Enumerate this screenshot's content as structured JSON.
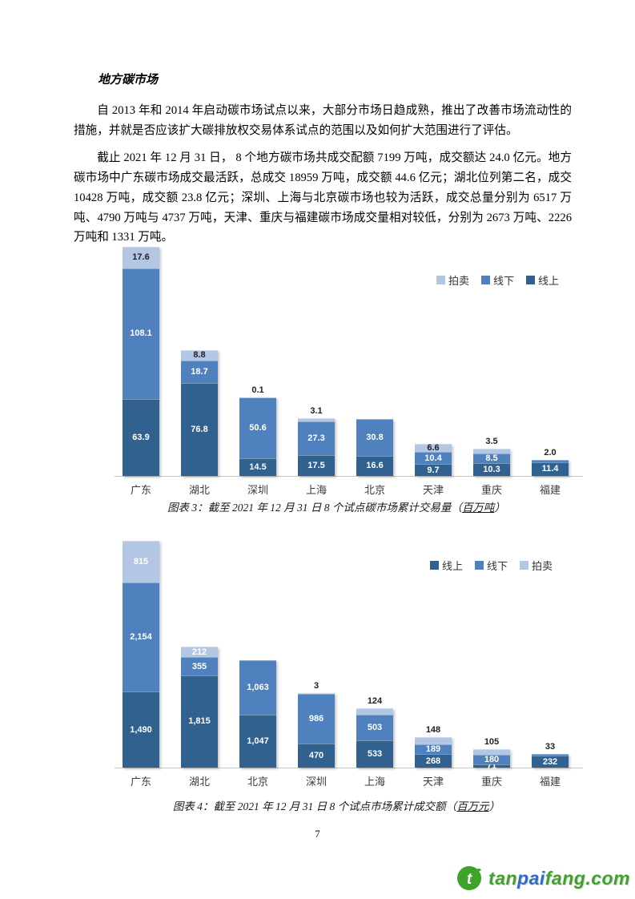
{
  "page": {
    "number": "7"
  },
  "heading": "地方碳市场",
  "paragraphs": [
    {
      "text": "自 2013 年和 2014 年启动碳市场试点以来，大部分市场日趋成熟，推出了改善市场流动性的措施，并就是否应该扩大碳排放权交易体系试点的范围以及如何扩大范围进行了评估。"
    },
    {
      "text": "截止 2021 年 12 月 31 日， 8 个地方碳市场共成交配额 7199 万吨，成交额达 24.0 亿元。地方碳市场中广东碳市场成交最活跃，总成交 18959 万吨，成交额 44.6 亿元；湖北位列第二名，成交 10428 万吨，成交额 23.8 亿元；深圳、上海与北京碳市场也较为活跃，成交总量分别为 6517 万吨、4790 万吨与 4737 万吨，天津、重庆与福建碳市场成交量相对较低，分别为 2673 万吨、2226 万吨和 1331 万吨。"
    }
  ],
  "chart_data": [
    {
      "type": "bar",
      "stacked": true,
      "title": "截至 2021 年 12 月 31 日 8 个试点碳市场累计交易量（百万吨）",
      "caption": {
        "prefix": "图表 3：截至 2021 年 12 月 31 日 8 个试点碳市场累计交易量（",
        "unit": "百万吨",
        "suffix": "）"
      },
      "ylim": [
        0,
        189.6
      ],
      "grid": false,
      "legend_position": "top-right",
      "series_colors": {
        "线上": "#31618F",
        "线下": "#4E81BD",
        "拍卖": "#B3C6E3"
      },
      "legend": {
        "items": [
          {
            "label": "拍卖",
            "series": "拍卖"
          },
          {
            "label": "线下",
            "series": "线下"
          },
          {
            "label": "线上",
            "series": "线上"
          }
        ]
      },
      "categories": [
        "广东",
        "湖北",
        "深圳",
        "上海",
        "北京",
        "天津",
        "重庆",
        "福建"
      ],
      "bars": [
        {
          "category": "广东",
          "segments": [
            {
              "series": "线上",
              "value": 63.9,
              "label": "63.9",
              "label_pos": "inside",
              "label_color": "#FFFFFF"
            },
            {
              "series": "线下",
              "value": 108.1,
              "label": "108.1",
              "label_pos": "inside",
              "label_color": "#FFFFFF"
            },
            {
              "series": "拍卖",
              "value": 17.6,
              "label": "17.6",
              "label_pos": "inside",
              "label_color": "#1F1F1F"
            }
          ]
        },
        {
          "category": "湖北",
          "segments": [
            {
              "series": "线上",
              "value": 76.8,
              "label": "76.8",
              "label_pos": "inside",
              "label_color": "#FFFFFF"
            },
            {
              "series": "线下",
              "value": 18.7,
              "label": "18.7",
              "label_pos": "inside",
              "label_color": "#FFFFFF"
            },
            {
              "series": "拍卖",
              "value": 8.8,
              "label": "8.8",
              "label_pos": "inside",
              "label_color": "#1F1F1F"
            }
          ]
        },
        {
          "category": "深圳",
          "segments": [
            {
              "series": "线上",
              "value": 14.5,
              "label": "14.5",
              "label_pos": "inside",
              "label_color": "#FFFFFF"
            },
            {
              "series": "线下",
              "value": 50.6,
              "label": "50.6",
              "label_pos": "inside",
              "label_color": "#FFFFFF"
            },
            {
              "series": "拍卖",
              "value": 0.1,
              "label": "0.1",
              "label_pos": "above"
            }
          ]
        },
        {
          "category": "上海",
          "segments": [
            {
              "series": "线上",
              "value": 17.5,
              "label": "17.5",
              "label_pos": "inside",
              "label_color": "#FFFFFF"
            },
            {
              "series": "线下",
              "value": 27.3,
              "label": "27.3",
              "label_pos": "inside",
              "label_color": "#FFFFFF"
            },
            {
              "series": "拍卖",
              "value": 3.1,
              "label": "3.1",
              "label_pos": "above"
            }
          ]
        },
        {
          "category": "北京",
          "segments": [
            {
              "series": "线上",
              "value": 16.6,
              "label": "16.6",
              "label_pos": "inside",
              "label_color": "#FFFFFF"
            },
            {
              "series": "线下",
              "value": 30.8,
              "label": "30.8",
              "label_pos": "inside",
              "label_color": "#FFFFFF"
            }
          ]
        },
        {
          "category": "天津",
          "segments": [
            {
              "series": "线上",
              "value": 9.7,
              "label": "9.7",
              "label_pos": "inside",
              "label_color": "#FFFFFF"
            },
            {
              "series": "线下",
              "value": 10.4,
              "label": "10.4",
              "label_pos": "inside",
              "label_color": "#FFFFFF"
            },
            {
              "series": "拍卖",
              "value": 6.6,
              "label": "6.6",
              "label_pos": "inside",
              "label_color": "#1F1F1F"
            }
          ]
        },
        {
          "category": "重庆",
          "segments": [
            {
              "series": "线上",
              "value": 10.3,
              "label": "10.3",
              "label_pos": "inside",
              "label_color": "#FFFFFF"
            },
            {
              "series": "线下",
              "value": 8.5,
              "label": "8.5",
              "label_pos": "inside",
              "label_color": "#FFFFFF"
            },
            {
              "series": "拍卖",
              "value": 3.5,
              "label": "3.5",
              "label_pos": "above"
            }
          ]
        },
        {
          "category": "福建",
          "segments": [
            {
              "series": "线上",
              "value": 11.4,
              "label": "11.4",
              "label_pos": "inside",
              "label_color": "#FFFFFF"
            },
            {
              "series": "线下",
              "value": 2.0,
              "label": "2.0",
              "label_pos": "above"
            }
          ]
        }
      ]
    },
    {
      "type": "bar",
      "stacked": true,
      "title": "截至 2021 年 12 月 31 日 8 个试点市场累计成交额（百万元）",
      "caption": {
        "prefix": "图表 4：截至 2021 年 12 月 31 日 8 个试点市场累计成交额（",
        "unit": "百万元",
        "suffix": "）"
      },
      "ylim": [
        0,
        4459
      ],
      "grid": false,
      "legend_position": "top-right",
      "series_colors": {
        "线上": "#31618F",
        "线下": "#4E81BD",
        "拍卖": "#B3C6E3"
      },
      "legend": {
        "items": [
          {
            "label": "线上",
            "series": "线上"
          },
          {
            "label": "线下",
            "series": "线下"
          },
          {
            "label": "拍卖",
            "series": "拍卖"
          }
        ]
      },
      "categories": [
        "广东",
        "湖北",
        "北京",
        "深圳",
        "上海",
        "天津",
        "重庆",
        "福建"
      ],
      "bars": [
        {
          "category": "广东",
          "segments": [
            {
              "series": "线上",
              "value": 1490,
              "label": "1,490",
              "label_pos": "inside",
              "label_color": "#FFFFFF"
            },
            {
              "series": "线下",
              "value": 2154,
              "label": "2,154",
              "label_pos": "inside",
              "label_color": "#FFFFFF"
            },
            {
              "series": "拍卖",
              "value": 815,
              "label": "815",
              "label_pos": "inside",
              "label_color": "#FFFFFF"
            }
          ]
        },
        {
          "category": "湖北",
          "segments": [
            {
              "series": "线上",
              "value": 1815,
              "label": "1,815",
              "label_pos": "inside",
              "label_color": "#FFFFFF"
            },
            {
              "series": "线下",
              "value": 355,
              "label": "355",
              "label_pos": "inside",
              "label_color": "#FFFFFF"
            },
            {
              "series": "拍卖",
              "value": 212,
              "label": "212",
              "label_pos": "inside",
              "label_color": "#FFFFFF"
            }
          ]
        },
        {
          "category": "北京",
          "segments": [
            {
              "series": "线上",
              "value": 1047,
              "label": "1,047",
              "label_pos": "inside",
              "label_color": "#FFFFFF"
            },
            {
              "series": "线下",
              "value": 1063,
              "label": "1,063",
              "label_pos": "inside",
              "label_color": "#FFFFFF"
            }
          ]
        },
        {
          "category": "深圳",
          "segments": [
            {
              "series": "线上",
              "value": 470,
              "label": "470",
              "label_pos": "inside",
              "label_color": "#FFFFFF"
            },
            {
              "series": "线下",
              "value": 986,
              "label": "986",
              "label_pos": "inside",
              "label_color": "#FFFFFF"
            },
            {
              "series": "拍卖",
              "value": 3,
              "label": "3",
              "label_pos": "above"
            }
          ]
        },
        {
          "category": "上海",
          "segments": [
            {
              "series": "线上",
              "value": 533,
              "label": "533",
              "label_pos": "inside",
              "label_color": "#FFFFFF"
            },
            {
              "series": "线下",
              "value": 503,
              "label": "503",
              "label_pos": "inside",
              "label_color": "#FFFFFF"
            },
            {
              "series": "拍卖",
              "value": 124,
              "label": "124",
              "label_pos": "above"
            }
          ]
        },
        {
          "category": "天津",
          "segments": [
            {
              "series": "线上",
              "value": 268,
              "label": "268",
              "label_pos": "inside",
              "label_color": "#FFFFFF"
            },
            {
              "series": "线下",
              "value": 189,
              "label": "189",
              "label_pos": "inside",
              "label_color": "#FFFFFF"
            },
            {
              "series": "拍卖",
              "value": 148,
              "label": "148",
              "label_pos": "above"
            }
          ]
        },
        {
          "category": "重庆",
          "segments": [
            {
              "series": "线上",
              "value": 71,
              "label": "71",
              "label_pos": "inside",
              "label_color": "#FFFFFF"
            },
            {
              "series": "线下",
              "value": 180,
              "label": "180",
              "label_pos": "inside",
              "label_color": "#FFFFFF"
            },
            {
              "series": "拍卖",
              "value": 105,
              "label": "105",
              "label_pos": "above"
            }
          ]
        },
        {
          "category": "福建",
          "segments": [
            {
              "series": "线上",
              "value": 232,
              "label": "232",
              "label_pos": "inside",
              "label_color": "#FFFFFF"
            },
            {
              "series": "线下",
              "value": 33,
              "label": "33",
              "label_pos": "above"
            }
          ]
        }
      ]
    }
  ],
  "footer_logo": {
    "icon_color": "#3FA32A",
    "parts": [
      {
        "text": "tan",
        "color": "#3FA32A"
      },
      {
        "text": "pai",
        "color": "#2F6BC9"
      },
      {
        "text": "fang.com",
        "color": "#3FA32A"
      }
    ]
  }
}
